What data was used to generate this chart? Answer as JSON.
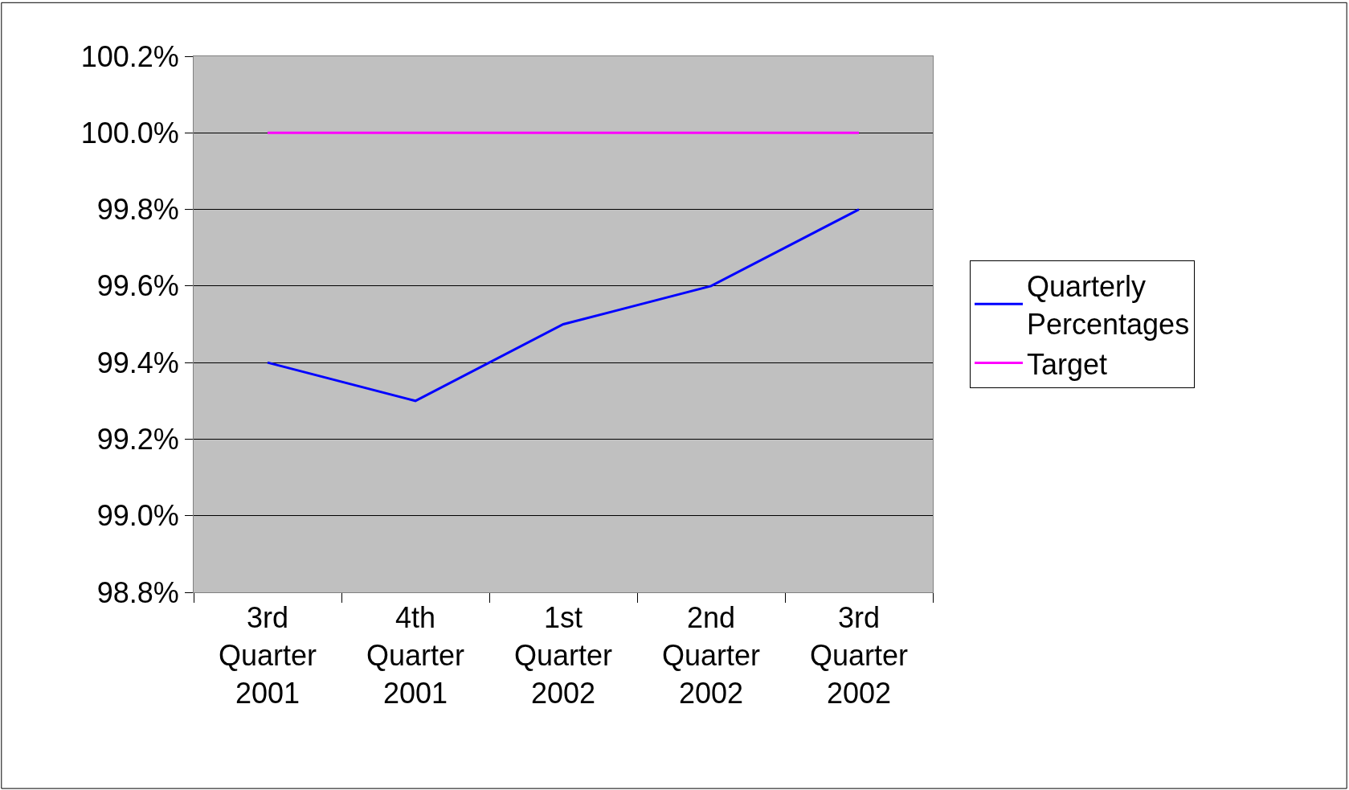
{
  "chart_data": {
    "type": "line",
    "categories": [
      "3rd Quarter 2001",
      "4th Quarter 2001",
      "1st Quarter 2002",
      "2nd Quarter 2002",
      "3rd Quarter 2002"
    ],
    "series": [
      {
        "name": "Quarterly Percentages",
        "color": "#0000ff",
        "values": [
          99.4,
          99.3,
          99.5,
          99.6,
          99.8
        ]
      },
      {
        "name": "Target",
        "color": "#ff00ff",
        "values": [
          100.0,
          100.0,
          100.0,
          100.0,
          100.0
        ]
      }
    ],
    "ylim": [
      98.8,
      100.2
    ],
    "yticks": [
      {
        "value": 98.8,
        "label": "98.8%"
      },
      {
        "value": 99.0,
        "label": "99.0%"
      },
      {
        "value": 99.2,
        "label": "99.2%"
      },
      {
        "value": 99.4,
        "label": "99.4%"
      },
      {
        "value": 99.6,
        "label": "99.6%"
      },
      {
        "value": 99.8,
        "label": "99.8%"
      },
      {
        "value": 100.0,
        "label": "100.0%"
      },
      {
        "value": 100.2,
        "label": "100.2%"
      }
    ],
    "grid": "y",
    "legend": "right",
    "marker": "none",
    "line_style": "solid"
  }
}
